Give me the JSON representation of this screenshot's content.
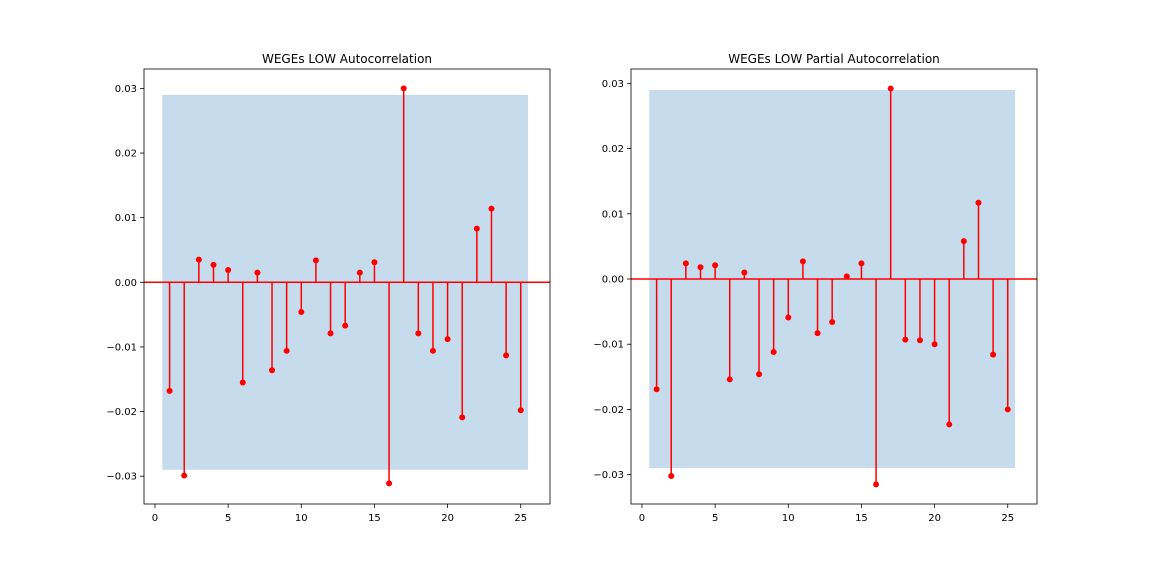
{
  "colors": {
    "stem": "#ff0000",
    "marker": "#ff0000",
    "baseline": "#ff0000",
    "confidence_band": "#c6dbeb",
    "axes": "#000000",
    "background": "#ffffff"
  },
  "chart_data": [
    {
      "type": "stem",
      "title": "WEGEs LOW Autocorrelation",
      "xlabel": "",
      "ylabel": "",
      "xlim": [
        -0.75,
        27
      ],
      "ylim": [
        -0.0343,
        0.033
      ],
      "xticks": [
        0,
        5,
        10,
        15,
        20,
        25
      ],
      "xtick_labels": [
        "0",
        "5",
        "10",
        "15",
        "20",
        "25"
      ],
      "yticks": [
        -0.03,
        -0.02,
        -0.01,
        0.0,
        0.01,
        0.02,
        0.03
      ],
      "ytick_labels": [
        "−0.03",
        "−0.02",
        "−0.01",
        "0.00",
        "0.01",
        "0.02",
        "0.03"
      ],
      "grid": false,
      "confidence_band": {
        "x": [
          0.5,
          25.5
        ],
        "lower": -0.029,
        "upper": 0.029
      },
      "lags": [
        1,
        2,
        3,
        4,
        5,
        6,
        7,
        8,
        9,
        10,
        11,
        12,
        13,
        14,
        15,
        16,
        17,
        18,
        19,
        20,
        21,
        22,
        23,
        24,
        25
      ],
      "values": [
        -0.0168,
        -0.0299,
        0.0035,
        0.0027,
        0.0019,
        -0.0155,
        0.0015,
        -0.0136,
        -0.0106,
        -0.0046,
        0.0034,
        -0.0079,
        -0.0067,
        0.0015,
        0.0031,
        -0.0311,
        0.03,
        -0.0079,
        -0.0106,
        -0.0088,
        -0.0209,
        0.0083,
        0.0114,
        -0.0113,
        -0.0198
      ]
    },
    {
      "type": "stem",
      "title": "WEGEs LOW Partial Autocorrelation",
      "xlabel": "",
      "ylabel": "",
      "xlim": [
        -0.75,
        27
      ],
      "ylim": [
        -0.0345,
        0.0322
      ],
      "xticks": [
        0,
        5,
        10,
        15,
        20,
        25
      ],
      "xtick_labels": [
        "0",
        "5",
        "10",
        "15",
        "20",
        "25"
      ],
      "yticks": [
        -0.03,
        -0.02,
        -0.01,
        0.0,
        0.01,
        0.02,
        0.03
      ],
      "ytick_labels": [
        "−0.03",
        "−0.02",
        "−0.01",
        "0.00",
        "0.01",
        "0.02",
        "0.03"
      ],
      "grid": false,
      "confidence_band": {
        "x": [
          0.5,
          25.5
        ],
        "lower": -0.029,
        "upper": 0.029
      },
      "lags": [
        1,
        2,
        3,
        4,
        5,
        6,
        7,
        8,
        9,
        10,
        11,
        12,
        13,
        14,
        15,
        16,
        17,
        18,
        19,
        20,
        21,
        22,
        23,
        24,
        25
      ],
      "values": [
        -0.0169,
        -0.0302,
        0.0024,
        0.0018,
        0.0021,
        -0.0154,
        0.001,
        -0.0146,
        -0.0112,
        -0.0059,
        0.0027,
        -0.0083,
        -0.0066,
        0.0004,
        0.0024,
        -0.0315,
        0.0292,
        -0.0093,
        -0.0094,
        -0.01,
        -0.0223,
        0.0058,
        0.0117,
        -0.0116,
        -0.02
      ]
    }
  ]
}
